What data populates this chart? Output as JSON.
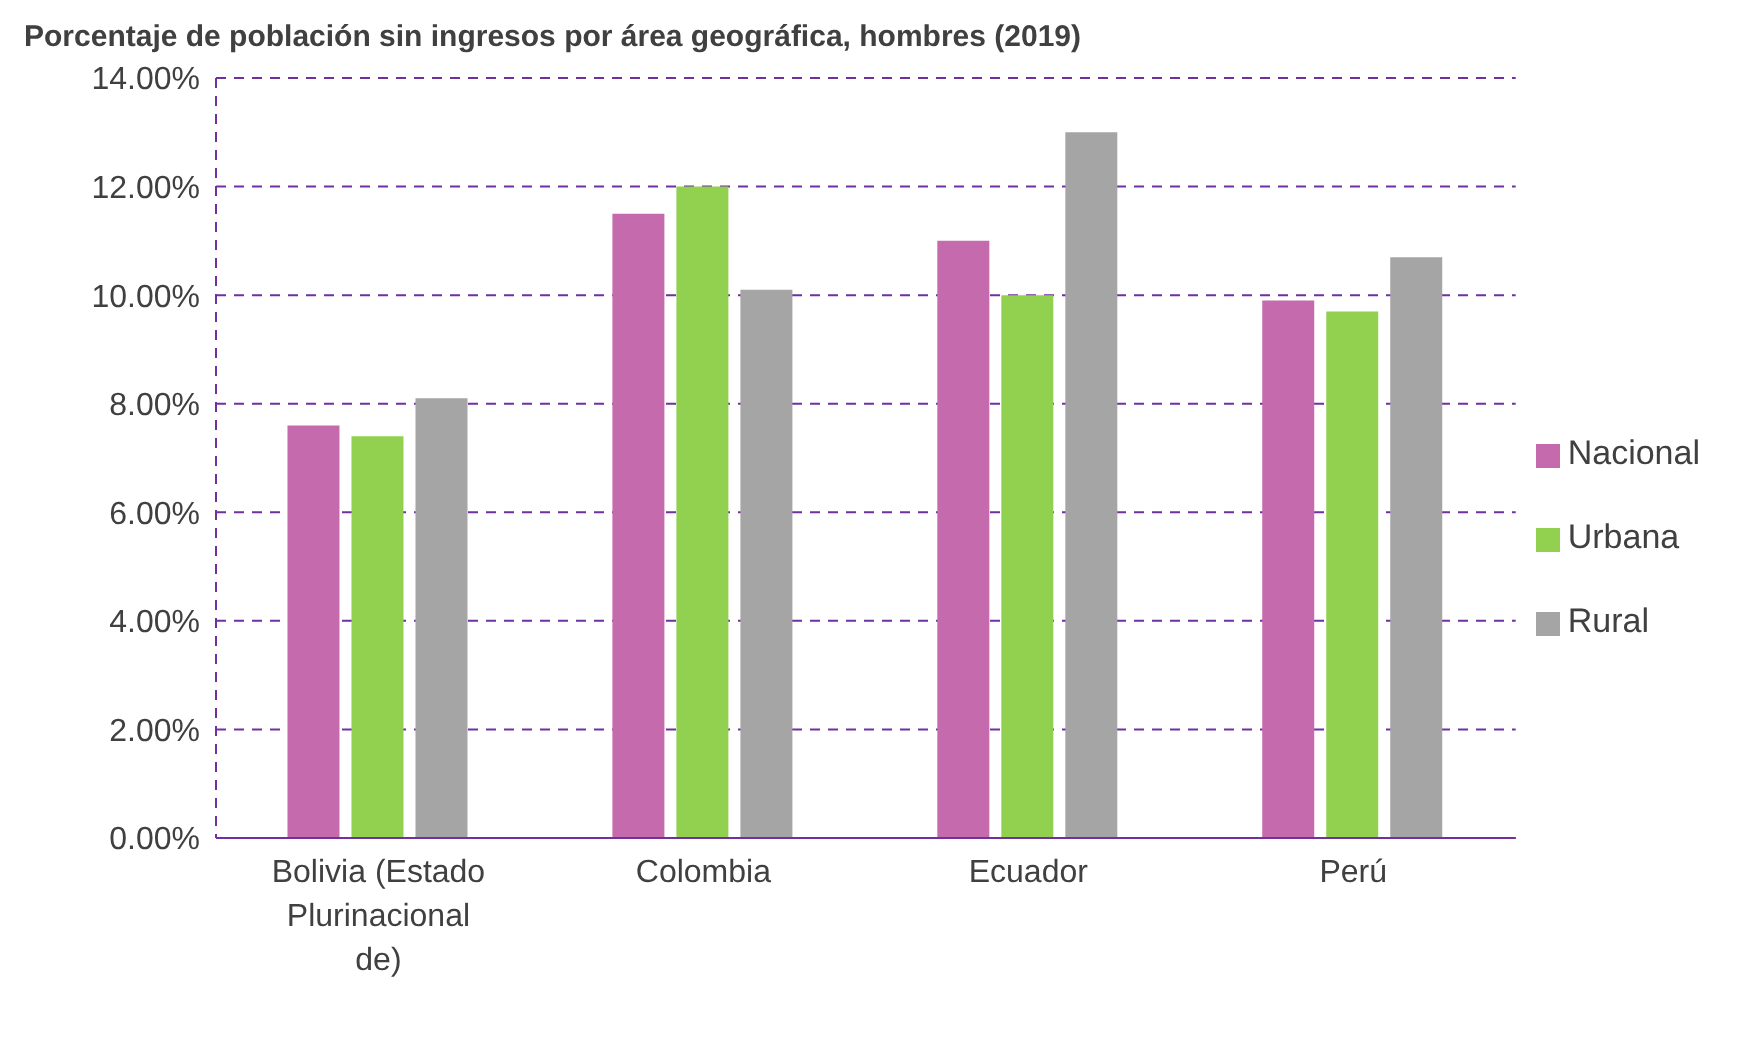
{
  "chart_data": {
    "type": "bar",
    "title": "Porcentaje de población sin ingresos por área geográfica, hombres (2019)",
    "categories": [
      "Bolivia (Estado Plurinacional de)",
      "Colombia",
      "Ecuador",
      "Perú"
    ],
    "series": [
      {
        "name": "Nacional",
        "color": "#c46aad",
        "values": [
          7.6,
          11.5,
          11.0,
          9.9
        ]
      },
      {
        "name": "Urbana",
        "color": "#92d050",
        "values": [
          7.4,
          12.0,
          10.0,
          9.7
        ]
      },
      {
        "name": "Rural",
        "color": "#a5a5a5",
        "values": [
          8.1,
          10.1,
          13.0,
          10.7
        ]
      }
    ],
    "ylim": [
      0,
      14
    ],
    "yticks": [
      {
        "value": 0,
        "label": "0.00%"
      },
      {
        "value": 2,
        "label": "2.00%"
      },
      {
        "value": 4,
        "label": "4.00%"
      },
      {
        "value": 6,
        "label": "6.00%"
      },
      {
        "value": 8,
        "label": "8.00%"
      },
      {
        "value": 10,
        "label": "10.00%"
      },
      {
        "value": 12,
        "label": "12.00%"
      },
      {
        "value": 14,
        "label": "14.00%"
      }
    ],
    "grid": "y",
    "legend": "right"
  }
}
